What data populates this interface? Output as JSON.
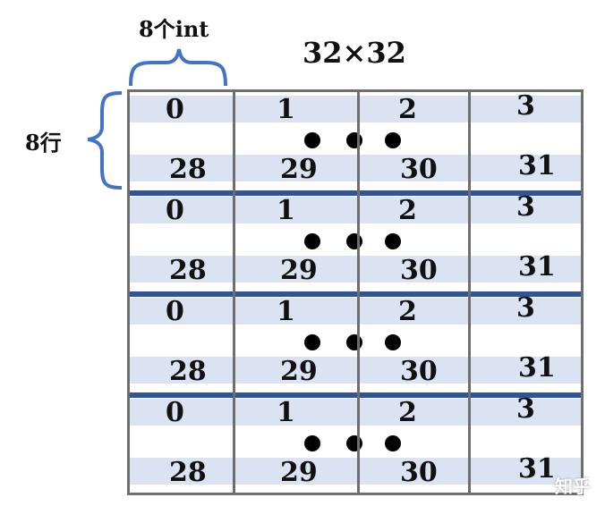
{
  "title": "32×32",
  "column_width_label": "8个int",
  "row_height_label": "8行",
  "blocks": [
    {
      "first_row": [
        "0",
        "1",
        "2",
        "3"
      ],
      "last_row": [
        "28",
        "29",
        "30",
        "31"
      ]
    },
    {
      "first_row": [
        "0",
        "1",
        "2",
        "3"
      ],
      "last_row": [
        "28",
        "29",
        "30",
        "31"
      ]
    },
    {
      "first_row": [
        "0",
        "1",
        "2",
        "3"
      ],
      "last_row": [
        "28",
        "29",
        "30",
        "31"
      ]
    },
    {
      "first_row": [
        "0",
        "1",
        "2",
        "3"
      ],
      "last_row": [
        "28",
        "29",
        "30",
        "31"
      ]
    }
  ],
  "colors": {
    "stripe": "#dbe3f3",
    "separator": "#2f5597",
    "grid_line": "#6e6e6e",
    "brace": "#4472c4"
  },
  "watermark": "知乎"
}
